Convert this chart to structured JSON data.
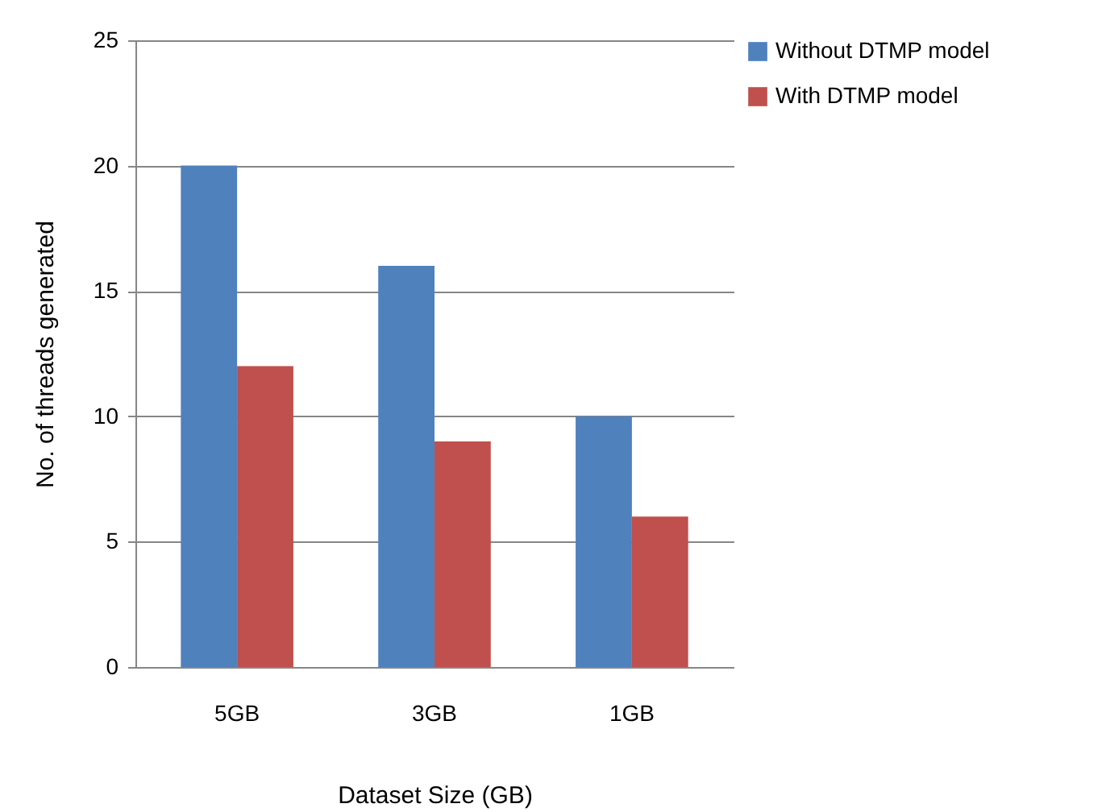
{
  "chart_data": {
    "type": "bar",
    "xlabel": "Dataset Size (GB)",
    "ylabel": "No. of threads generated",
    "categories": [
      "5GB",
      "3GB",
      "1GB"
    ],
    "series": [
      {
        "name": "Without DTMP model",
        "color": "#4f81bd",
        "values": [
          20,
          16,
          10
        ]
      },
      {
        "name": "With DTMP model",
        "color": "#c0504d",
        "values": [
          12,
          9,
          6
        ]
      }
    ],
    "ylim": [
      0,
      25
    ],
    "yticks": [
      0,
      5,
      10,
      15,
      20,
      25
    ],
    "grid": "y",
    "legend": "right"
  }
}
